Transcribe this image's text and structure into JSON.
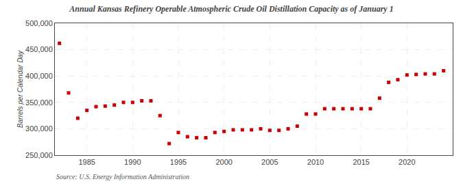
{
  "chart_data": {
    "type": "scatter",
    "title": "Annual Kansas Refinery Operable Atmospheric Crude Oil Distillation Capacity as of January 1",
    "ylabel": "Barrels per Calendar Day",
    "annotations": [
      "Source: U.S. Energy Information Administration"
    ],
    "x": [
      1982,
      1983,
      1984,
      1985,
      1986,
      1987,
      1988,
      1989,
      1990,
      1991,
      1992,
      1993,
      1994,
      1995,
      1996,
      1997,
      1998,
      1999,
      2000,
      2001,
      2002,
      2003,
      2004,
      2005,
      2006,
      2007,
      2008,
      2009,
      2010,
      2011,
      2012,
      2013,
      2014,
      2015,
      2016,
      2017,
      2018,
      2019,
      2020,
      2021,
      2022,
      2023,
      2024
    ],
    "values": [
      462000,
      368000,
      320000,
      335000,
      342000,
      343000,
      345000,
      350000,
      350000,
      353000,
      353000,
      325000,
      272000,
      293000,
      285000,
      283000,
      283000,
      293000,
      295000,
      298000,
      298000,
      298000,
      300000,
      297000,
      297000,
      300000,
      305000,
      328000,
      328000,
      338000,
      338000,
      338000,
      338000,
      338000,
      338000,
      358000,
      388000,
      393000,
      402000,
      403000,
      404000,
      404000,
      410000
    ],
    "color": "#cc0000",
    "marker": "square",
    "xlim": [
      1981.5,
      2025
    ],
    "xticks": [
      1985,
      1990,
      1995,
      2000,
      2005,
      2010,
      2015,
      2020
    ],
    "ylim": [
      250000,
      500000
    ],
    "yticks": [
      {
        "value": 250000,
        "label": "250,000"
      },
      {
        "value": 300000,
        "label": "300,000"
      },
      {
        "value": 350000,
        "label": "350,000"
      },
      {
        "value": 400000,
        "label": "400,000"
      },
      {
        "value": 450000,
        "label": "450,000"
      },
      {
        "value": 500000,
        "label": "500,000"
      }
    ],
    "grid": true
  }
}
